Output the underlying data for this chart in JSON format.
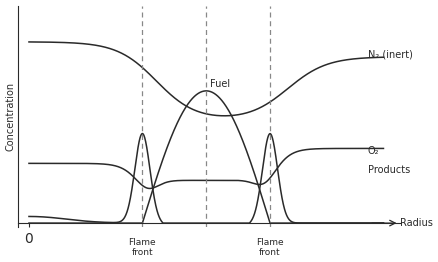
{
  "ylabel": "Concentration",
  "xlabel": "Radius",
  "background_color": "#ffffff",
  "line_color": "#2a2a2a",
  "dashed_color": "#888888",
  "label_N2": "N₂ (inert)",
  "label_fuel": "Fuel",
  "label_O2": "O₂",
  "label_products": "Products",
  "label_flame1": "Flame\nfront",
  "label_flame2": "Flame\nfront",
  "fontsize_labels": 7,
  "fontsize_axis": 7,
  "ff1": 3.2,
  "ctr": 5.0,
  "ff2": 6.8
}
